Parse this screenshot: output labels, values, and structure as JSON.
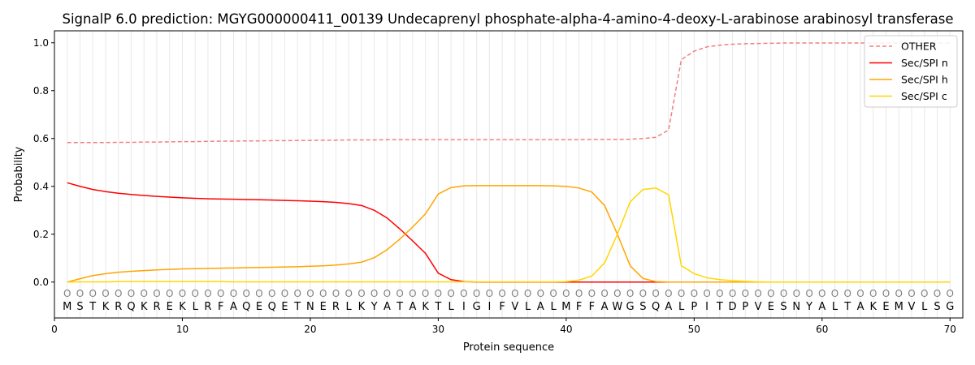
{
  "chart_data": {
    "type": "line",
    "title": "SignalP 6.0 prediction: MGYG000000411_00139 Undecaprenyl phosphate-alpha-4-amino-4-deoxy-L-arabinose arabinosyl transferase",
    "xlabel": "Protein sequence",
    "ylabel": "Probability",
    "xlim": [
      0,
      71
    ],
    "ylim": [
      -0.15,
      1.05
    ],
    "xticks": [
      0,
      10,
      20,
      30,
      40,
      50,
      60,
      70
    ],
    "yticks": [
      0.0,
      0.2,
      0.4,
      0.6,
      0.8,
      1.0
    ],
    "ytick_labels": [
      "0.0",
      "0.2",
      "0.4",
      "0.6",
      "0.8",
      "1.0"
    ],
    "legend_position": "top-right",
    "sequence": [
      "M",
      "S",
      "T",
      "K",
      "R",
      "Q",
      "K",
      "R",
      "E",
      "K",
      "L",
      "R",
      "F",
      "A",
      "Q",
      "E",
      "Q",
      "E",
      "T",
      "N",
      "E",
      "R",
      "L",
      "K",
      "Y",
      "A",
      "T",
      "A",
      "K",
      "T",
      "L",
      "I",
      "G",
      "I",
      "F",
      "V",
      "L",
      "A",
      "L",
      "M",
      "F",
      "F",
      "A",
      "W",
      "G",
      "S",
      "Q",
      "A",
      "L",
      "P",
      "I",
      "T",
      "D",
      "P",
      "V",
      "E",
      "S",
      "N",
      "Y",
      "A",
      "L",
      "T",
      "A",
      "K",
      "E",
      "M",
      "V",
      "L",
      "S",
      "G"
    ],
    "label_marker": "O",
    "series": [
      {
        "name": "OTHER",
        "color": "#f08080",
        "dash": true,
        "values": [
          0.583,
          0.583,
          0.583,
          0.583,
          0.584,
          0.584,
          0.585,
          0.585,
          0.586,
          0.587,
          0.587,
          0.588,
          0.589,
          0.589,
          0.59,
          0.59,
          0.591,
          0.591,
          0.592,
          0.592,
          0.593,
          0.593,
          0.594,
          0.594,
          0.594,
          0.595,
          0.595,
          0.595,
          0.595,
          0.595,
          0.595,
          0.595,
          0.595,
          0.595,
          0.595,
          0.595,
          0.595,
          0.595,
          0.595,
          0.595,
          0.595,
          0.596,
          0.596,
          0.596,
          0.597,
          0.6,
          0.605,
          0.635,
          0.93,
          0.965,
          0.983,
          0.99,
          0.994,
          0.996,
          0.997,
          0.998,
          0.999,
          0.999,
          0.999,
          0.999,
          0.999,
          0.999,
          0.999,
          0.999,
          0.999,
          0.999,
          0.999,
          0.999,
          0.999,
          0.999
        ]
      },
      {
        "name": "Sec/SPI n",
        "color": "#ff0000",
        "dash": false,
        "values": [
          0.415,
          0.4,
          0.387,
          0.378,
          0.371,
          0.366,
          0.362,
          0.358,
          0.355,
          0.352,
          0.35,
          0.348,
          0.347,
          0.346,
          0.345,
          0.344,
          0.343,
          0.341,
          0.34,
          0.338,
          0.336,
          0.333,
          0.328,
          0.32,
          0.3,
          0.268,
          0.222,
          0.172,
          0.12,
          0.037,
          0.01,
          0.002,
          0,
          0,
          0,
          0,
          0,
          0,
          0,
          0,
          0,
          0,
          0,
          0,
          0,
          0,
          0,
          0,
          0,
          0,
          0,
          0,
          0,
          0,
          0,
          0,
          0,
          0,
          0,
          0,
          0,
          0,
          0,
          0,
          0,
          0,
          0,
          0,
          0,
          0
        ]
      },
      {
        "name": "Sec/SPI h",
        "color": "#ffa500",
        "dash": false,
        "values": [
          0.0,
          0.014,
          0.027,
          0.035,
          0.041,
          0.045,
          0.048,
          0.051,
          0.053,
          0.055,
          0.056,
          0.057,
          0.058,
          0.059,
          0.06,
          0.061,
          0.062,
          0.063,
          0.064,
          0.066,
          0.068,
          0.071,
          0.076,
          0.083,
          0.102,
          0.135,
          0.18,
          0.23,
          0.285,
          0.368,
          0.395,
          0.402,
          0.403,
          0.403,
          0.403,
          0.403,
          0.403,
          0.403,
          0.402,
          0.4,
          0.393,
          0.376,
          0.32,
          0.2,
          0.068,
          0.015,
          0.002,
          0,
          0,
          0,
          0,
          0,
          0,
          0,
          0,
          0,
          0,
          0,
          0,
          0,
          0,
          0,
          0,
          0,
          0,
          0,
          0,
          0,
          0,
          0
        ]
      },
      {
        "name": "Sec/SPI c",
        "color": "#ffd700",
        "dash": false,
        "values": [
          0.0,
          0.001,
          0.001,
          0.001,
          0.002,
          0.002,
          0.002,
          0.002,
          0.002,
          0.002,
          0.002,
          0.002,
          0.002,
          0.001,
          0.001,
          0.001,
          0.001,
          0.001,
          0.001,
          0.001,
          0.001,
          0.001,
          0.001,
          0.001,
          0.001,
          0.001,
          0.001,
          0.001,
          0.001,
          0.001,
          0.001,
          0.001,
          0.001,
          0.001,
          0.001,
          0.001,
          0.001,
          0.001,
          0.001,
          0.002,
          0.008,
          0.025,
          0.08,
          0.2,
          0.335,
          0.387,
          0.393,
          0.365,
          0.068,
          0.035,
          0.018,
          0.01,
          0.006,
          0.003,
          0.001,
          0,
          0,
          0,
          0,
          0,
          0,
          0,
          0,
          0,
          0,
          0,
          0,
          0,
          0,
          0
        ]
      }
    ]
  }
}
